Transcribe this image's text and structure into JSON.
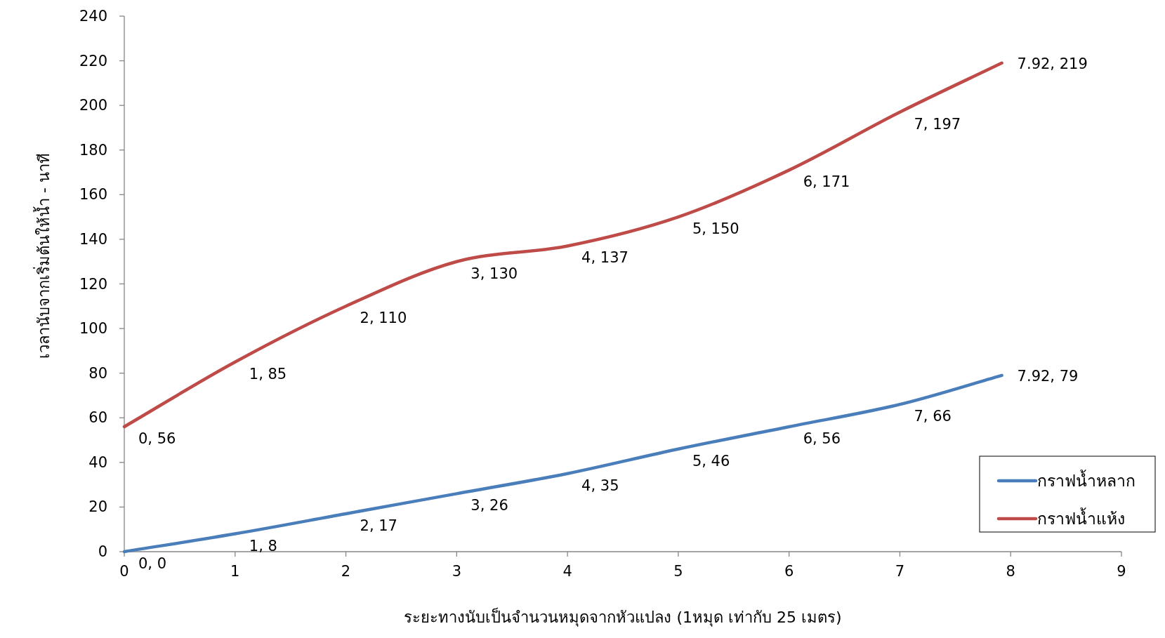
{
  "chart_data": {
    "type": "line",
    "xlabel": "ระยะทางนับเป็นจำนวนหมุดจากหัวแปลง (1หมุด เท่ากับ 25 เมตร)",
    "ylabel": "เวลานับจากเริ่มต้นให้น้ำ - นาที",
    "x": [
      0,
      1,
      2,
      3,
      4,
      5,
      6,
      7,
      7.92
    ],
    "series": [
      {
        "name": "กราฟน้ำหลาก",
        "color": "#4a7ebb",
        "values": [
          0,
          8,
          17,
          26,
          35,
          46,
          56,
          66,
          79
        ],
        "value_labels": [
          "0, 0",
          "1, 8",
          "2, 17",
          "3, 26",
          "4, 35",
          "5, 46",
          "6, 56",
          "7, 66",
          "7.92, 79"
        ]
      },
      {
        "name": "กราฟน้ำแห้ง",
        "color": "#be4b48",
        "values": [
          56,
          85,
          110,
          130,
          137,
          150,
          171,
          197,
          219
        ],
        "value_labels": [
          "0, 56",
          "1, 85",
          "2, 110",
          "3, 130",
          "4, 137",
          "5, 150",
          "6, 171",
          "7, 197",
          "7.92, 219"
        ]
      }
    ],
    "xlim": [
      0,
      9
    ],
    "xticks": [
      0,
      1,
      2,
      3,
      4,
      5,
      6,
      7,
      8,
      9
    ],
    "ylim": [
      0,
      240
    ],
    "yticks": [
      0,
      20,
      40,
      60,
      80,
      100,
      120,
      140,
      160,
      180,
      200,
      220,
      240
    ],
    "legend": "bottom right"
  }
}
